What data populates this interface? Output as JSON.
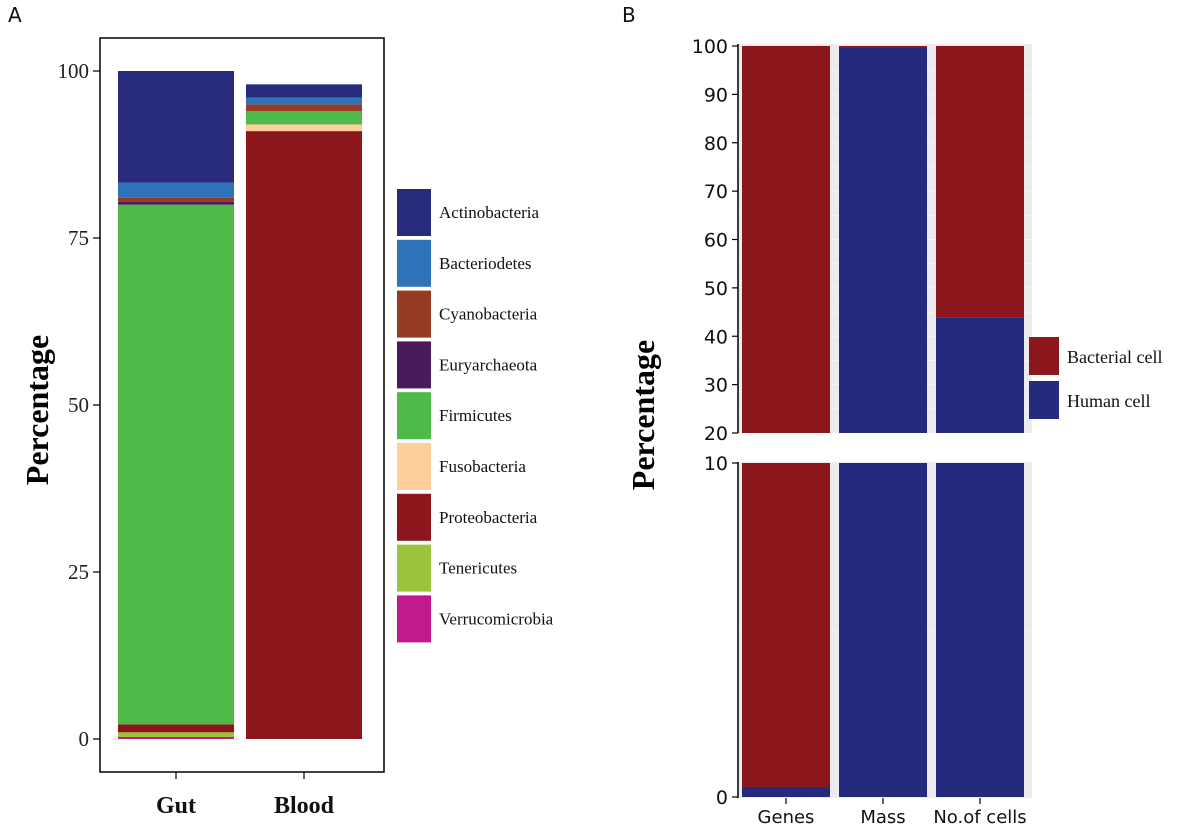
{
  "chart_data": [
    {
      "panel_label": "A",
      "type": "bar",
      "stacked": true,
      "categories": [
        "Gut",
        "Blood"
      ],
      "ylabel": "Percentage",
      "xlabel": "",
      "ylim": [
        0,
        100
      ],
      "yticks": [
        0,
        25,
        50,
        75,
        100
      ],
      "ytick_labels": [
        "0",
        "25",
        "50",
        "75",
        "100"
      ],
      "legend_position": "right",
      "series": [
        {
          "name": "Verrucomicrobia",
          "color": "#c2198e",
          "values": [
            0.3,
            0
          ]
        },
        {
          "name": "Tenericutes",
          "color": "#9ac43c",
          "values": [
            0.7,
            0
          ]
        },
        {
          "name": "Proteobacteria",
          "color": "#8b161b",
          "values": [
            1.2,
            91.0
          ]
        },
        {
          "name": "Fusobacteria",
          "color": "#fdcf9a",
          "values": [
            0,
            1.0
          ]
        },
        {
          "name": "Firmicutes",
          "color": "#4fba4a",
          "values": [
            77.8,
            2.0
          ]
        },
        {
          "name": "Euryarchaeota",
          "color": "#4b1a5b",
          "values": [
            0.4,
            0
          ]
        },
        {
          "name": "Cyanobacteria",
          "color": "#963b24",
          "values": [
            0.6,
            1.0
          ]
        },
        {
          "name": "Bacteriodetes",
          "color": "#2e73ba",
          "values": [
            2.3,
            1.0
          ]
        },
        {
          "name": "Actinobacteria",
          "color": "#282b7c",
          "values": [
            16.7,
            2.0
          ]
        }
      ],
      "legend_order": [
        "Actinobacteria",
        "Bacteriodetes",
        "Cyanobacteria",
        "Euryarchaeota",
        "Firmicutes",
        "Fusobacteria",
        "Proteobacteria",
        "Tenericutes",
        "Verrucomicrobia"
      ]
    },
    {
      "panel_label": "B",
      "type": "bar",
      "stacked": true,
      "axis_break": [
        10,
        20
      ],
      "categories": [
        "Genes",
        "Mass",
        "No.of cells"
      ],
      "ylabel": "Percentage",
      "xlabel": "",
      "ylim": [
        0,
        100
      ],
      "upper_yticks": [
        20,
        30,
        40,
        50,
        60,
        70,
        80,
        90,
        100
      ],
      "upper_ytick_labels": [
        "20",
        "30",
        "40",
        "50",
        "60",
        "70",
        "80",
        "90",
        "100"
      ],
      "lower_yticks": [
        0,
        10
      ],
      "lower_ytick_labels": [
        "0",
        "10"
      ],
      "legend_position": "right",
      "series": [
        {
          "name": "Human cell",
          "color": "#262a7c",
          "values": [
            0.3,
            99.7,
            43.8
          ]
        },
        {
          "name": "Bacterial cell",
          "color": "#8b161b",
          "values": [
            99.7,
            0.3,
            56.2
          ]
        }
      ],
      "legend_order": [
        "Bacterial cell",
        "Human cell"
      ]
    }
  ]
}
